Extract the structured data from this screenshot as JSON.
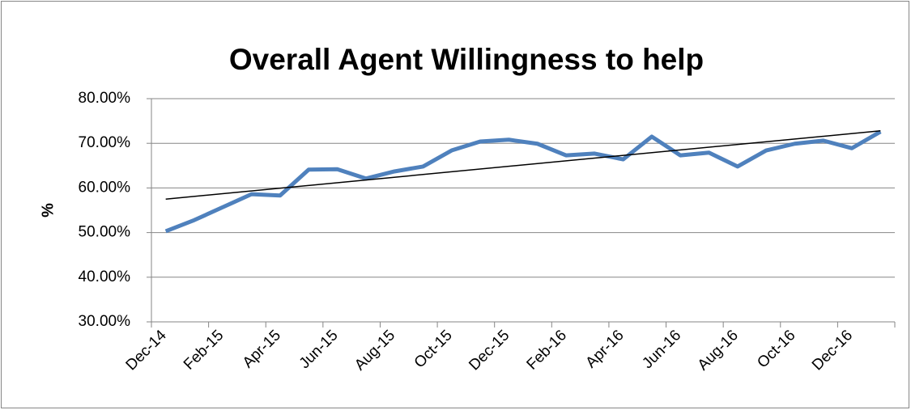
{
  "chart_data": {
    "type": "line",
    "title": "Overall Agent Willingness to help",
    "y_label": "%",
    "categories": [
      "Dec-14",
      null,
      "Feb-15",
      null,
      "Apr-15",
      null,
      "Jun-15",
      null,
      "Aug-15",
      null,
      "Oct-15",
      null,
      "Dec-15",
      null,
      "Feb-16",
      null,
      "Apr-16",
      null,
      "Jun-16",
      null,
      "Aug-16",
      null,
      "Oct-16",
      null,
      "Dec-16",
      null
    ],
    "series": [
      {
        "color": "#4f81bd",
        "values": [
          50.3,
          52.8,
          55.7,
          58.6,
          58.3,
          64.1,
          64.2,
          62.1,
          63.7,
          64.8,
          68.4,
          70.4,
          70.8,
          69.9,
          67.3,
          67.7,
          66.4,
          71.5,
          67.3,
          67.9,
          64.8,
          68.4,
          69.9,
          70.6,
          68.9,
          72.6
        ]
      }
    ],
    "trendline": {
      "color": "#000000",
      "values": [
        57.5,
        72.8
      ]
    },
    "ylim": [
      30,
      80
    ],
    "yticks": [
      {
        "value": 30,
        "label": "30.00%"
      },
      {
        "value": 40,
        "label": "40.00%"
      },
      {
        "value": 50,
        "label": "50.00%"
      },
      {
        "value": 60,
        "label": "60.00%"
      },
      {
        "value": 70,
        "label": "70.00%"
      },
      {
        "value": 80,
        "label": "80.00%"
      }
    ],
    "grid": true
  }
}
